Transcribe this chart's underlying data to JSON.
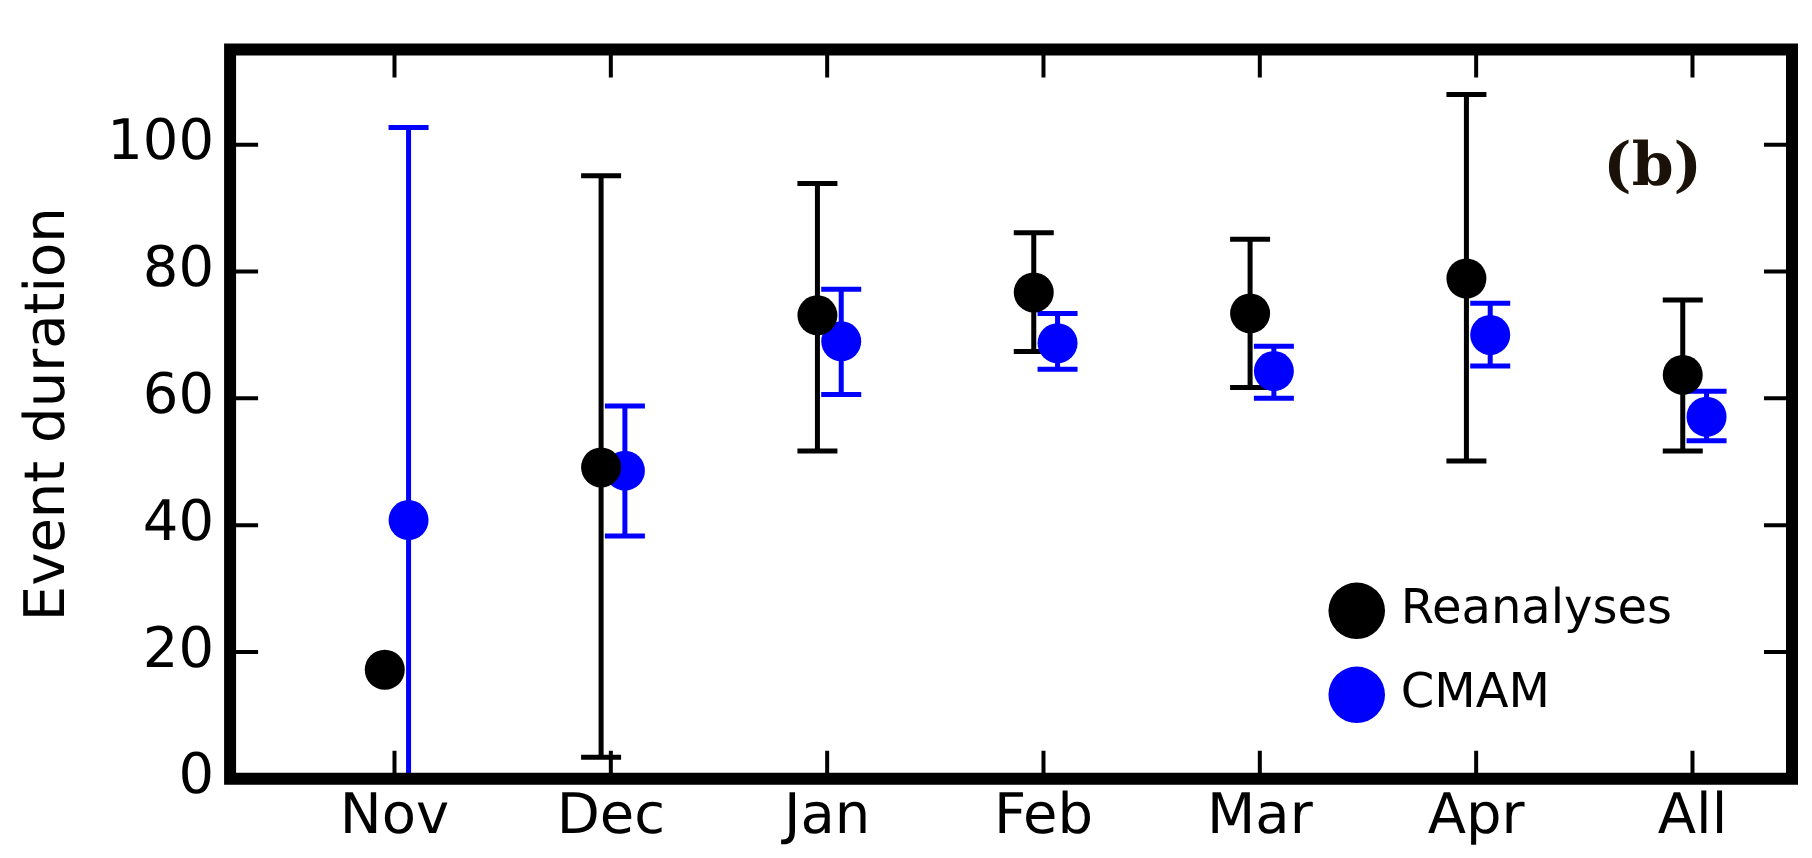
{
  "chart_data": {
    "type": "scatter",
    "ylabel": "Event duration",
    "categories": [
      "Nov",
      "Dec",
      "Jan",
      "Feb",
      "Mar",
      "Apr",
      "All"
    ],
    "series": [
      {
        "name": "Reanalyses",
        "color": "#000000",
        "values": [
          17.2,
          49.1,
          73.1,
          76.7,
          73.4,
          78.9,
          63.7
        ],
        "errors": [
          null,
          [
            3.4,
            95.1
          ],
          [
            51.7,
            93.9
          ],
          [
            67.4,
            86.1
          ],
          [
            61.7,
            85.1
          ],
          [
            50.1,
            107.9
          ],
          [
            51.7,
            75.5
          ]
        ]
      },
      {
        "name": "CMAM",
        "color": "#0000ff",
        "values": [
          40.8,
          48.6,
          69,
          68.7,
          64.3,
          70,
          57.1
        ],
        "errors": [
          [
            0,
            102.7
          ],
          [
            38.3,
            58.8
          ],
          [
            60.6,
            77.2
          ],
          [
            64.6,
            73.4
          ],
          [
            60.0,
            68.2
          ],
          [
            65.1,
            75
          ],
          [
            53.3,
            61.1
          ]
        ]
      }
    ],
    "ylim": [
      0,
      115
    ],
    "yticks": [
      0,
      20,
      40,
      60,
      80,
      100
    ],
    "annotations": [
      "(b)"
    ],
    "legend": "bottom right",
    "marker": "circle",
    "grid": false
  }
}
